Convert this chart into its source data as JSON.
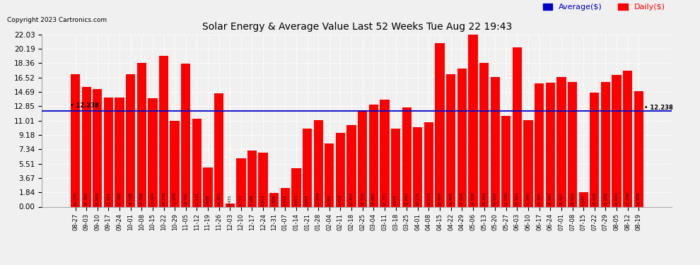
{
  "title": "Solar Energy & Average Value Last 52 Weeks Tue Aug 22 19:43",
  "copyright": "Copyright 2023 Cartronics.com",
  "legend_avg": "Average($)",
  "legend_daily": "Daily($)",
  "average_line": 12.238,
  "bar_color": "#ff0000",
  "avg_line_color": "#0000cc",
  "background_color": "#f0f0f0",
  "grid_color": "#ffffff",
  "yticks": [
    0.0,
    1.84,
    3.67,
    5.51,
    7.34,
    9.18,
    11.01,
    12.85,
    14.69,
    16.52,
    18.36,
    20.19,
    22.03
  ],
  "xlabels": [
    "08-27",
    "09-03",
    "09-10",
    "09-17",
    "09-24",
    "10-01",
    "10-08",
    "10-15",
    "10-22",
    "10-29",
    "11-05",
    "11-12",
    "11-19",
    "11-26",
    "12-03",
    "12-10",
    "12-17",
    "12-24",
    "12-31",
    "01-07",
    "01-14",
    "01-21",
    "01-28",
    "02-04",
    "02-11",
    "02-18",
    "02-25",
    "03-04",
    "03-11",
    "03-18",
    "03-25",
    "04-01",
    "04-08",
    "04-15",
    "04-22",
    "04-29",
    "05-06",
    "05-13",
    "05-20",
    "05-27",
    "06-03",
    "06-10",
    "06-17",
    "06-24",
    "07-01",
    "07-08",
    "07-15",
    "07-22",
    "07-29",
    "08-05",
    "08-12",
    "08-19"
  ],
  "values": [
    16.975,
    15.356,
    15.004,
    13.921,
    13.998,
    16.988,
    18.38,
    13.829,
    19.33,
    10.999,
    18.341,
    11.241,
    4.988,
    14.479,
    0.431,
    6.177,
    7.168,
    6.921,
    1.806,
    2.416,
    4.911,
    9.955,
    11.094,
    8.064,
    9.453,
    10.453,
    12.316,
    13.062,
    13.723,
    9.972,
    12.663,
    10.174,
    10.814,
    20.914,
    16.962,
    17.629,
    22.928,
    18.384,
    16.553,
    11.646,
    20.353,
    11.04,
    15.76,
    15.843,
    16.607,
    15.96,
    1.834,
    14.609,
    15.96,
    16.834,
    17.438,
    14.809
  ],
  "ylim": [
    0,
    22.03
  ],
  "figsize": [
    9.9,
    3.75
  ],
  "dpi": 100
}
